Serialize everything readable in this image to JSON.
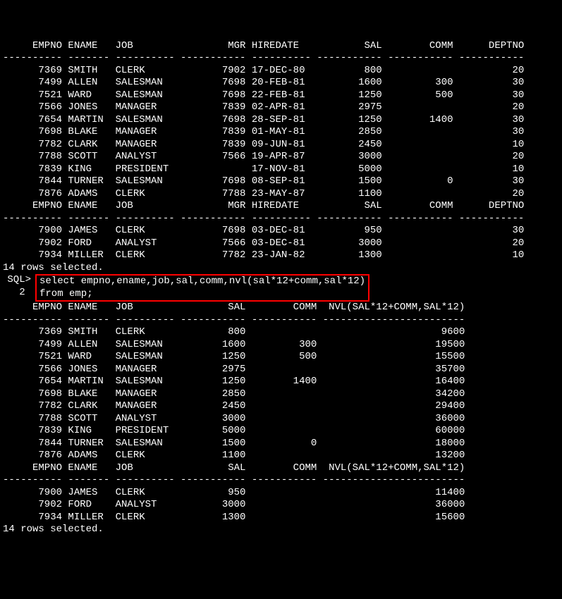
{
  "table1": {
    "header": {
      "columns": [
        "EMPNO",
        "ENAME",
        "JOB",
        "MGR",
        "HIREDATE",
        "SAL",
        "COMM",
        "DEPTNO"
      ],
      "widths": [
        10,
        7,
        10,
        11,
        10,
        11,
        11,
        11
      ],
      "aligns": [
        "right",
        "left",
        "left",
        "right",
        "left",
        "right",
        "right",
        "right"
      ]
    },
    "rows1": [
      [
        "7369",
        "SMITH",
        "CLERK",
        "7902",
        "17-DEC-80",
        "800",
        "",
        "20"
      ],
      [
        "7499",
        "ALLEN",
        "SALESMAN",
        "7698",
        "20-FEB-81",
        "1600",
        "300",
        "30"
      ],
      [
        "7521",
        "WARD",
        "SALESMAN",
        "7698",
        "22-FEB-81",
        "1250",
        "500",
        "30"
      ],
      [
        "7566",
        "JONES",
        "MANAGER",
        "7839",
        "02-APR-81",
        "2975",
        "",
        "20"
      ],
      [
        "7654",
        "MARTIN",
        "SALESMAN",
        "7698",
        "28-SEP-81",
        "1250",
        "1400",
        "30"
      ],
      [
        "7698",
        "BLAKE",
        "MANAGER",
        "7839",
        "01-MAY-81",
        "2850",
        "",
        "30"
      ],
      [
        "7782",
        "CLARK",
        "MANAGER",
        "7839",
        "09-JUN-81",
        "2450",
        "",
        "10"
      ],
      [
        "7788",
        "SCOTT",
        "ANALYST",
        "7566",
        "19-APR-87",
        "3000",
        "",
        "20"
      ],
      [
        "7839",
        "KING",
        "PRESIDENT",
        "",
        "17-NOV-81",
        "5000",
        "",
        "10"
      ],
      [
        "7844",
        "TURNER",
        "SALESMAN",
        "7698",
        "08-SEP-81",
        "1500",
        "0",
        "30"
      ],
      [
        "7876",
        "ADAMS",
        "CLERK",
        "7788",
        "23-MAY-87",
        "1100",
        "",
        "20"
      ]
    ],
    "rows2": [
      [
        "7900",
        "JAMES",
        "CLERK",
        "7698",
        "03-DEC-81",
        "950",
        "",
        "30"
      ],
      [
        "7902",
        "FORD",
        "ANALYST",
        "7566",
        "03-DEC-81",
        "3000",
        "",
        "20"
      ],
      [
        "7934",
        "MILLER",
        "CLERK",
        "7782",
        "23-JAN-82",
        "1300",
        "",
        "10"
      ]
    ]
  },
  "rows_selected": "14 rows selected.",
  "sql_prompt": "SQL>",
  "sql_line_num": "2",
  "sql_query_line1": "select empno,ename,job,sal,comm,nvl(sal*12+comm,sal*12)",
  "sql_query_line2": "from emp;",
  "highlight_color": "#ff0000",
  "table2": {
    "header": {
      "columns": [
        "EMPNO",
        "ENAME",
        "JOB",
        "SAL",
        "COMM",
        "NVL(SAL*12+COMM,SAL*12)"
      ],
      "widths": [
        10,
        7,
        10,
        11,
        11,
        24
      ],
      "aligns": [
        "right",
        "left",
        "left",
        "right",
        "right",
        "right"
      ]
    },
    "rows1": [
      [
        "7369",
        "SMITH",
        "CLERK",
        "800",
        "",
        "9600"
      ],
      [
        "7499",
        "ALLEN",
        "SALESMAN",
        "1600",
        "300",
        "19500"
      ],
      [
        "7521",
        "WARD",
        "SALESMAN",
        "1250",
        "500",
        "15500"
      ],
      [
        "7566",
        "JONES",
        "MANAGER",
        "2975",
        "",
        "35700"
      ],
      [
        "7654",
        "MARTIN",
        "SALESMAN",
        "1250",
        "1400",
        "16400"
      ],
      [
        "7698",
        "BLAKE",
        "MANAGER",
        "2850",
        "",
        "34200"
      ],
      [
        "7782",
        "CLARK",
        "MANAGER",
        "2450",
        "",
        "29400"
      ],
      [
        "7788",
        "SCOTT",
        "ANALYST",
        "3000",
        "",
        "36000"
      ],
      [
        "7839",
        "KING",
        "PRESIDENT",
        "5000",
        "",
        "60000"
      ],
      [
        "7844",
        "TURNER",
        "SALESMAN",
        "1500",
        "0",
        "18000"
      ],
      [
        "7876",
        "ADAMS",
        "CLERK",
        "1100",
        "",
        "13200"
      ]
    ],
    "rows2": [
      [
        "7900",
        "JAMES",
        "CLERK",
        "950",
        "",
        "11400"
      ],
      [
        "7902",
        "FORD",
        "ANALYST",
        "3000",
        "",
        "36000"
      ],
      [
        "7934",
        "MILLER",
        "CLERK",
        "1300",
        "",
        "15600"
      ]
    ]
  },
  "colors": {
    "background": "#000000",
    "text": "#ffffff"
  }
}
